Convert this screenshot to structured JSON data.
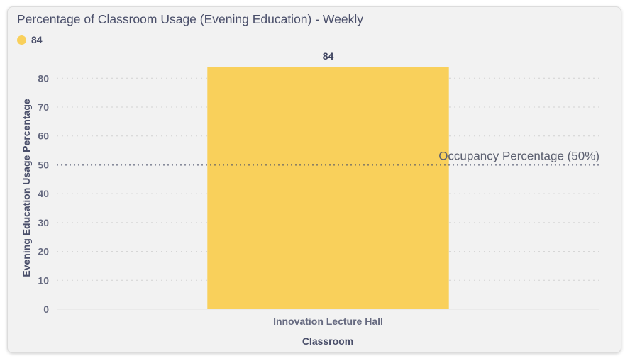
{
  "chart_data": {
    "type": "bar",
    "title": "Percentage of Classroom Usage (Evening Education) - Weekly",
    "categories": [
      "Innovation Lecture Hall"
    ],
    "series": [
      {
        "name": "84",
        "values": [
          84
        ],
        "color": "#f9d05b"
      }
    ],
    "data_labels": [
      "84"
    ],
    "xlabel": "Classroom",
    "ylabel": "Evening Education Usage Percentage",
    "ylim": [
      0,
      84
    ],
    "yticks": [
      0,
      10,
      20,
      30,
      40,
      50,
      60,
      70,
      80
    ],
    "grid": true,
    "legend_position": "top-left",
    "reference_line": {
      "value": 50,
      "label": "Occupancy Percentage (50%)",
      "style": "dotted",
      "color": "#4a4f6a"
    }
  }
}
